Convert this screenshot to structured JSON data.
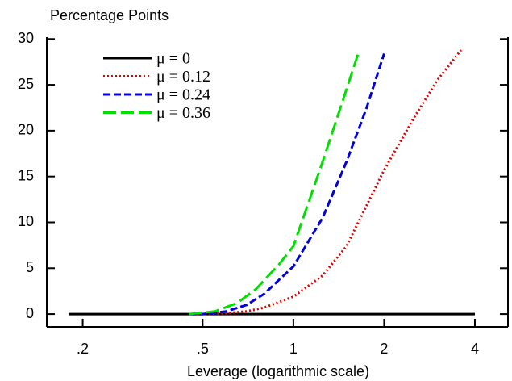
{
  "chart_data": {
    "type": "line",
    "ylabel": "Percentage Points",
    "xlabel": "Leverage (logarithmic scale)",
    "xscale": "log",
    "xlim": [
      0.152,
      5.15
    ],
    "ylim": [
      -1.4,
      30.2
    ],
    "xticks": [
      {
        "value": 0.2,
        "label": ".2"
      },
      {
        "value": 0.5,
        "label": ".5"
      },
      1,
      2,
      4
    ],
    "yticks": [
      0,
      5,
      10,
      15,
      20,
      25,
      30
    ],
    "series": [
      {
        "name": "μ = 0",
        "color": "#000000",
        "dash": "solid",
        "x": [
          0.18,
          4
        ],
        "values": [
          0,
          0
        ]
      },
      {
        "name": "μ = 0.12",
        "color": "#e00000",
        "dash": "dotted",
        "x": [
          0.45,
          0.5,
          0.6,
          0.7,
          0.8,
          1,
          1.25,
          1.5,
          2,
          2.5,
          3,
          3.6
        ],
        "values": [
          0,
          0,
          0.1,
          0.3,
          0.7,
          1.9,
          4.2,
          7.4,
          15.7,
          21.3,
          25.5,
          28.8
        ]
      },
      {
        "name": "μ = 0.24",
        "color": "#0000e0",
        "dash": "dashed",
        "x": [
          0.45,
          0.5,
          0.6,
          0.7,
          0.8,
          1,
          1.25,
          1.5,
          1.75,
          2
        ],
        "values": [
          0,
          0,
          0.3,
          1,
          2.2,
          5.2,
          10.5,
          16.6,
          22.5,
          28.4
        ]
      },
      {
        "name": "μ = 0.36",
        "color": "#00e000",
        "dash": "longdash",
        "x": [
          0.45,
          0.55,
          0.65,
          0.75,
          0.9,
          1,
          1.25,
          1.5,
          1.64
        ],
        "values": [
          0,
          0.3,
          1.2,
          2.7,
          5.5,
          7.4,
          16.6,
          24.5,
          28.4
        ]
      }
    ]
  }
}
